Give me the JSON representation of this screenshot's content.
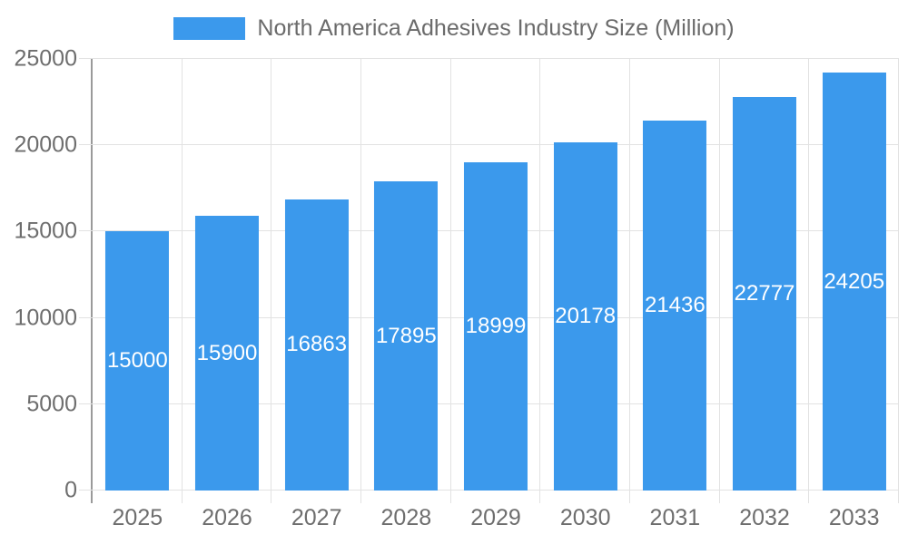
{
  "chart_data": {
    "type": "bar",
    "title": "",
    "series_name": "North America Adhesives Industry Size (Million)",
    "categories": [
      "2025",
      "2026",
      "2027",
      "2028",
      "2029",
      "2030",
      "2031",
      "2032",
      "2033"
    ],
    "values": [
      15000,
      15900,
      16863,
      17895,
      18999,
      20178,
      21436,
      22777,
      24205
    ],
    "xlabel": "",
    "ylabel": "",
    "ylim": [
      0,
      25000
    ],
    "yticks": [
      0,
      5000,
      10000,
      15000,
      20000,
      25000
    ],
    "grid": true,
    "legend_position": "top",
    "value_labels": "inside-center-white"
  },
  "colors": {
    "bar": "#3b99ec",
    "grid": "#e2e2e2",
    "axis": "#9a9a9a",
    "tick_text": "#6e6e6e",
    "legend_text": "#6b6b6b",
    "bar_label": "#ffffff",
    "background": "#ffffff"
  }
}
